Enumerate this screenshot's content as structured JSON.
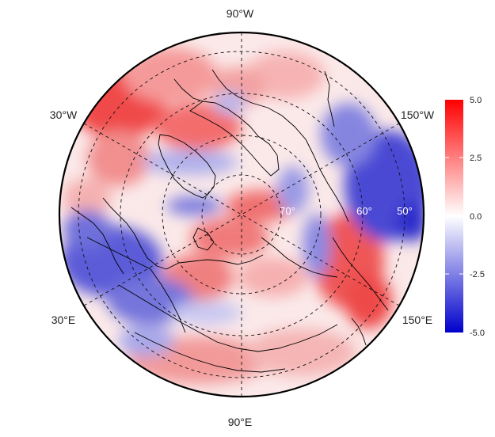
{
  "map": {
    "projection": "north-polar-stereographic",
    "longitude_labels": [
      "90°W",
      "30°W",
      "150°W",
      "30°E",
      "150°E",
      "90°E"
    ],
    "latitude_labels": [
      "70°",
      "60°",
      "50°"
    ],
    "colorbar": {
      "ticks": [
        "5.0",
        "2.5",
        "0.0",
        "-2.5",
        "-5.0"
      ],
      "range": [
        -5.0,
        5.0
      ],
      "colors": {
        "high": "#ff0000",
        "mid": "#ffffff",
        "low": "#0000cc"
      }
    },
    "field_colors": {
      "positive": "#f04848",
      "positive_light": "#f7a3a3",
      "negative": "#3a3ad0",
      "negative_light": "#9f9fe6"
    }
  }
}
